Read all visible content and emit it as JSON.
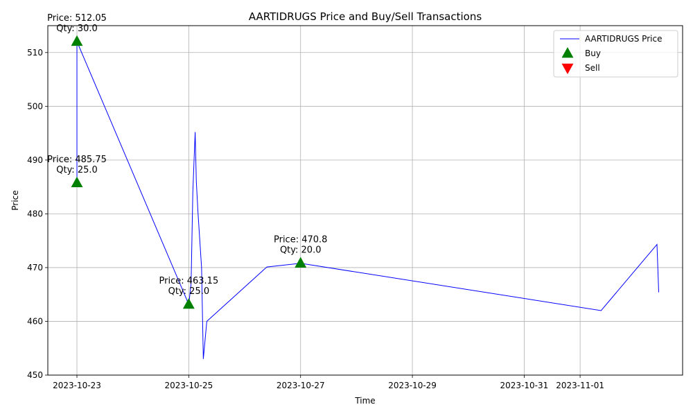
{
  "chart_data": {
    "type": "line",
    "title": "AARTIDRUGS Price and Buy/Sell Transactions",
    "xlabel": "Time",
    "ylabel": "Price",
    "xlim": [
      "2023-10-22T11:30",
      "2023-11-02T20:00"
    ],
    "ylim": [
      450,
      515
    ],
    "x_ticks": [
      "2023-10-23",
      "2023-10-25",
      "2023-10-27",
      "2023-10-29",
      "2023-10-31",
      "2023-11-01"
    ],
    "y_ticks": [
      450,
      460,
      470,
      480,
      490,
      500,
      510
    ],
    "grid": true,
    "legend": {
      "position": "top-right",
      "entries": [
        {
          "label": "AARTIDRUGS Price",
          "kind": "line",
          "color": "#0000ff"
        },
        {
          "label": "Buy",
          "kind": "triangle-up",
          "color": "#008000"
        },
        {
          "label": "Sell",
          "kind": "triangle-down",
          "color": "#ff0000"
        }
      ]
    },
    "series": [
      {
        "name": "AARTIDRUGS Price",
        "color": "#0000ff",
        "points": [
          {
            "x": "2023-10-23T00:00",
            "y": 485.75
          },
          {
            "x": "2023-10-23T00:00",
            "y": 512.05
          },
          {
            "x": "2023-10-25T00:00",
            "y": 463.15
          },
          {
            "x": "2023-10-25T01:00",
            "y": 467.0
          },
          {
            "x": "2023-10-25T01:45",
            "y": 484.0
          },
          {
            "x": "2023-10-25T02:45",
            "y": 495.2
          },
          {
            "x": "2023-10-25T03:15",
            "y": 486.0
          },
          {
            "x": "2023-10-25T04:00",
            "y": 480.0
          },
          {
            "x": "2023-10-25T05:30",
            "y": 470.0
          },
          {
            "x": "2023-10-25T06:15",
            "y": 453.0
          },
          {
            "x": "2023-10-25T07:45",
            "y": 460.0
          },
          {
            "x": "2023-10-26T09:30",
            "y": 470.1
          },
          {
            "x": "2023-10-27T00:00",
            "y": 470.8
          },
          {
            "x": "2023-11-01T09:00",
            "y": 462.0
          },
          {
            "x": "2023-11-02T09:00",
            "y": 474.3
          },
          {
            "x": "2023-11-02T09:45",
            "y": 465.4
          }
        ]
      }
    ],
    "buys": [
      {
        "x": "2023-10-23T00:00",
        "y": 512.05,
        "label": "Price: 512.05\nQty: 30.0"
      },
      {
        "x": "2023-10-23T00:00",
        "y": 485.75,
        "label": "Price: 485.75\nQty: 25.0"
      },
      {
        "x": "2023-10-25T00:00",
        "y": 463.15,
        "label": "Price: 463.15\nQty: 25.0"
      },
      {
        "x": "2023-10-27T00:00",
        "y": 470.8,
        "label": "Price: 470.8\nQty: 20.0"
      }
    ],
    "sells": []
  }
}
